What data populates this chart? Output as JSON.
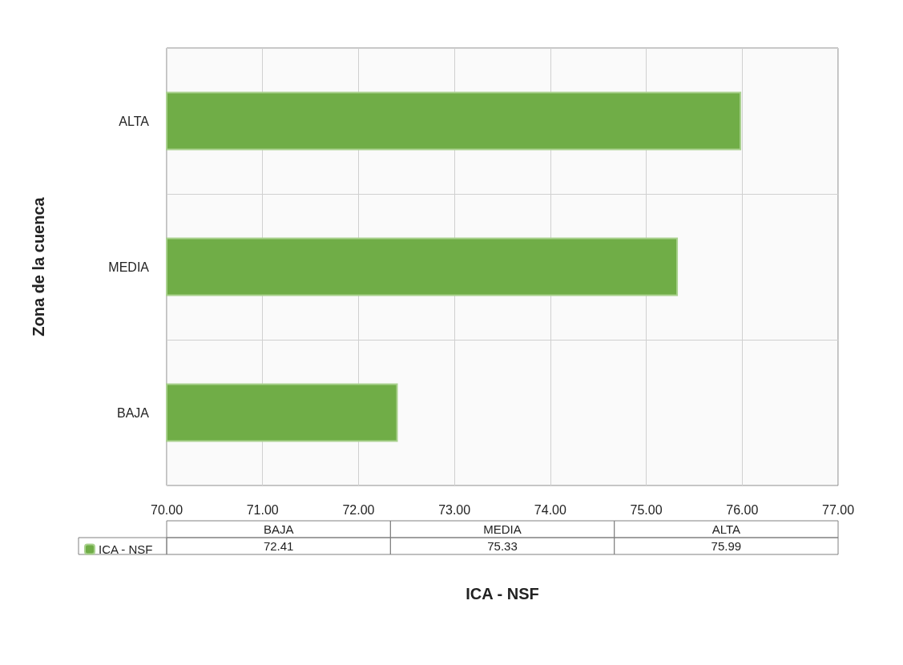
{
  "chart_data": {
    "type": "bar",
    "orientation": "horizontal",
    "xlabel": "ICA - NSF",
    "ylabel": "Zona de la cuenca",
    "categories": [
      "ALTA",
      "MEDIA",
      "BAJA"
    ],
    "series": [
      {
        "name": "ICA - NSF",
        "color": "#70ad47",
        "values": [
          75.99,
          75.33,
          72.41
        ]
      }
    ],
    "xlim": [
      70,
      77
    ],
    "xticks": [
      {
        "value": 70,
        "label": "70.00"
      },
      {
        "value": 71,
        "label": "71.00"
      },
      {
        "value": 72,
        "label": "72.00"
      },
      {
        "value": 73,
        "label": "73.00"
      },
      {
        "value": 74,
        "label": "74.00"
      },
      {
        "value": 75,
        "label": "75.00"
      },
      {
        "value": 76,
        "label": "76.00"
      },
      {
        "value": 77,
        "label": "77.00"
      }
    ],
    "annotations": [
      "72.41",
      "75.33",
      "75.99"
    ],
    "grid": true,
    "legend": "bottom left"
  }
}
